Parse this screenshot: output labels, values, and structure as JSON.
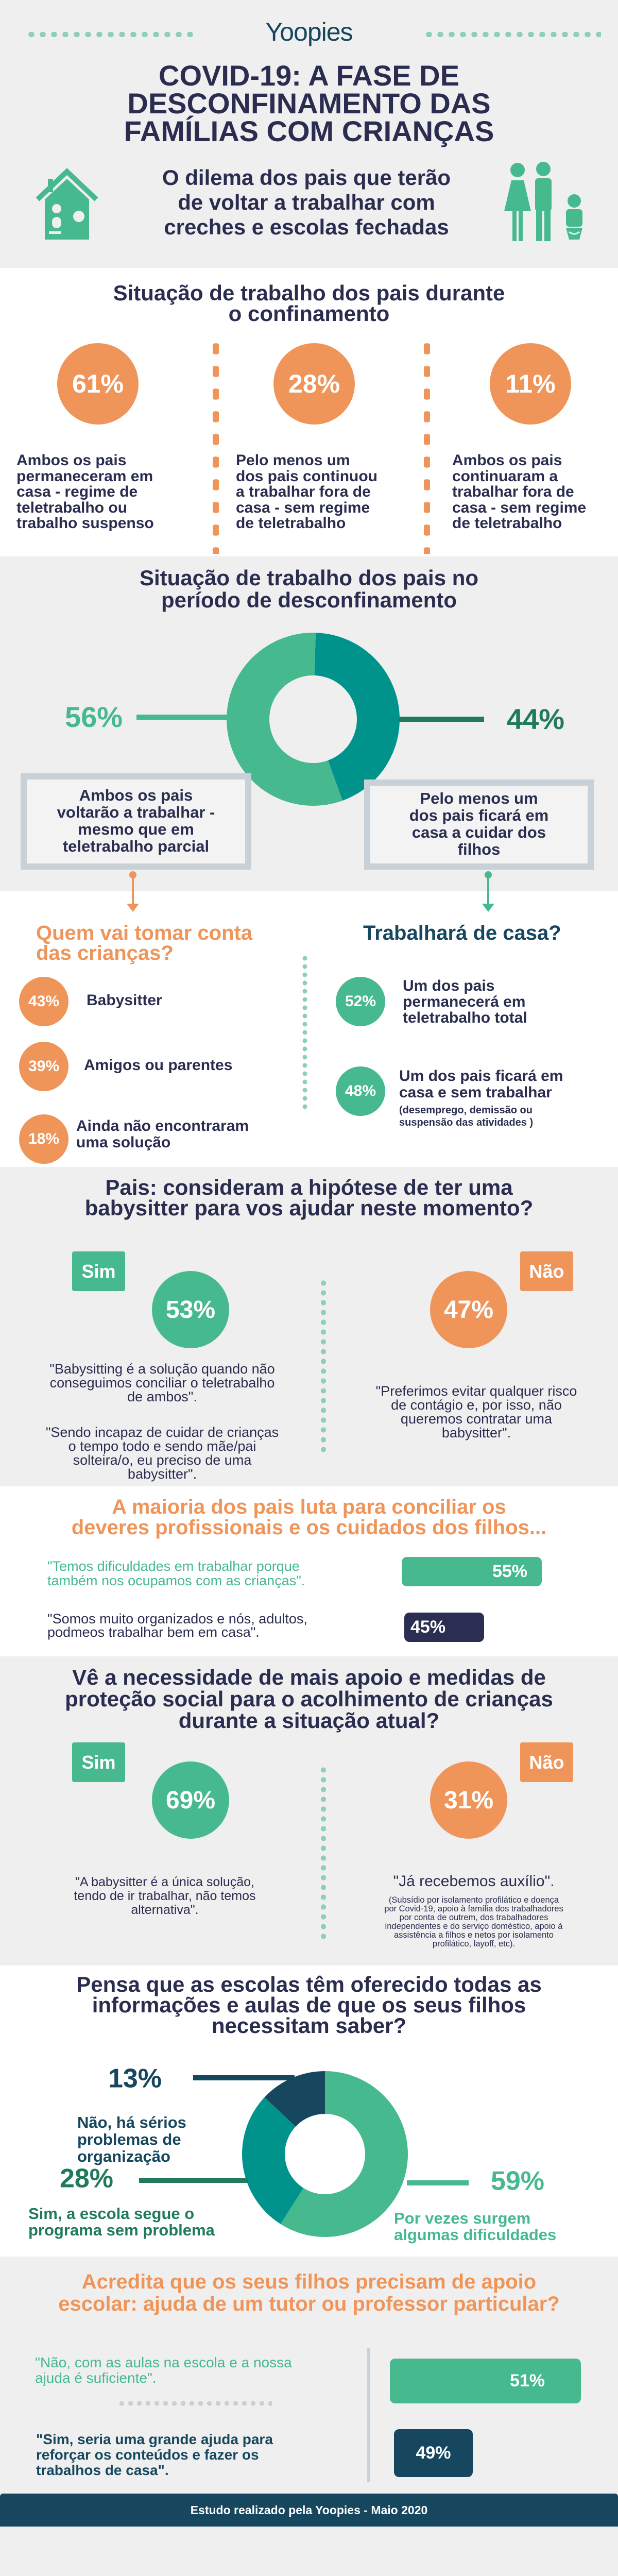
{
  "colors": {
    "navy": "#2a2d4f",
    "orange": "#f0955a",
    "green": "#46b98f",
    "teal": "#00938c",
    "darkblue": "#16475f",
    "darkgreen": "#217a5e",
    "box_border": "#c8d0d8"
  },
  "header": {
    "logo": "Yoopies",
    "title": "COVID-19: A FASE DE\nDESCONFINAMENTO DAS\nFAMÍLIAS COM CRIANÇAS",
    "subtitle": "O dilema dos pais que terão\nde voltar a trabalhar com\ncreches e escolas fechadas",
    "icons": [
      "house-icon",
      "family-icon"
    ]
  },
  "confinement": {
    "title": "Situação de trabalho dos pais durante\no confinamento",
    "items": [
      {
        "value": "61%",
        "text": "Ambos os pais\npermaneceram em\ncasa - regime de\nteletrabalho ou\ntrabalho suspenso"
      },
      {
        "value": "28%",
        "text": "Pelo menos um\ndos pais continuou\na trabalhar fora de\ncasa - sem regime\nde teletrabalho"
      },
      {
        "value": "11%",
        "text": "Ambos os pais\ncontinuaram a\ntrabalhar fora de\ncasa - sem regime\nde teletrabalho"
      }
    ]
  },
  "deconfinement": {
    "title": "Situação de trabalho dos pais no\nperíodo de desconfinamento",
    "left_box": "Ambos os pais\nvoltarão a trabalhar -\nmesmo que em\nteletrabalho parcial",
    "right_box": "Pelo menos um\ndos pais ficará em\ncasa a cuidar dos\nfilhos"
  },
  "childcare": {
    "title": "Quem vai tomar conta\ndas crianças?",
    "items": [
      {
        "value": "43%",
        "label": "Babysitter"
      },
      {
        "value": "39%",
        "label": "Amigos ou parentes"
      },
      {
        "value": "18%",
        "label": "Ainda não encontraram\numa solução"
      }
    ]
  },
  "work_home": {
    "title": "Trabalhará de casa?",
    "items": [
      {
        "value": "52%",
        "label": "Um dos pais\npermanecerá em\nteletrabalho total"
      },
      {
        "value": "48%",
        "label": "Um dos pais ficará em\ncasa e sem trabalhar",
        "note": "(desemprego, demissão ou\nsuspensão das atividades )"
      }
    ]
  },
  "babysitter_q": {
    "title": "Pais: consideram a hipótese de ter uma\nbabysitter para vos ajudar neste momento?",
    "yes_label": "Sim",
    "yes_value": "53%",
    "no_label": "Não",
    "no_value": "47%",
    "yes_quote1": "\"Babysitting é a solução quando não\nconseguimos conciliar o teletrabalho\nde ambos\".",
    "yes_quote2": "\"Sendo incapaz de cuidar de crianças\no tempo todo e sendo mãe/pai\nsolteira/o, eu preciso de uma\nbabysitter\".",
    "no_quote": "\"Preferimos evitar qualquer risco\nde contágio e, por isso, não\nqueremos contratar uma\nbabysitter\"."
  },
  "balance": {
    "title": "A maioria dos pais luta para conciliar os\ndeveres profissionais e os cuidados dos filhos...",
    "rows": [
      {
        "quote": "\"Temos dificuldades em trabalhar porque\ntambém nos ocupamos com as crianças\".",
        "value": "55%",
        "percent": 55
      },
      {
        "quote": "\"Somos muito organizados e nós, adultos,\npodmeos trabalhar bem em casa\".",
        "value": "45%",
        "percent": 45
      }
    ]
  },
  "support_q": {
    "title": "Vê a necessidade de mais apoio e medidas de\nproteção social para o acolhimento de crianças\ndurante a situação atual?",
    "yes_label": "Sim",
    "yes_value": "69%",
    "no_label": "Não",
    "no_value": "31%",
    "yes_quote": "\"A babysitter é a única solução,\ntendo de ir trabalhar, não temos\nalternativa\".",
    "no_quote": "\"Já recebemos auxílio\".",
    "no_note": "(Subsídio por isolamento profilático e doença\npor Covid-19, apoio à família dos trabalhadores\npor conta de outrem, dos trabalhadores\nindependentes e do serviço doméstico, apoio à\nassistência a filhos e netos por isolamento\nprofilático, layoff, etc)."
  },
  "schools_q": {
    "title": "Pensa que as escolas têm oferecido todas as\ninformações e aulas de que os seus filhos\nnecessitam saber?"
  },
  "tutor_q": {
    "title": "Acredita que os seus filhos precisam de apoio\nescolar: ajuda de um tutor ou professor particular?",
    "rows": [
      {
        "quote": "\"Não, com as aulas na escola e a nossa\najuda é suficiente\".",
        "value": "51%",
        "percent": 51
      },
      {
        "quote": "\"Sim, seria uma grande ajuda para\nreforçar os conteúdos e fazer os\ntrabalhos de casa\".",
        "value": "49%",
        "percent": 49
      }
    ]
  },
  "footer": {
    "text": "Estudo realizado pela Yoopies - Maio 2020"
  },
  "chart_data": [
    {
      "type": "pie",
      "donut": true,
      "categories": [
        "Ambos os pais voltarão a trabalhar - mesmo que em teletrabalho parcial",
        "Pelo menos um dos pais ficará em casa a cuidar dos filhos"
      ],
      "values": [
        56,
        44
      ],
      "labels": [
        "56%",
        "44%"
      ],
      "colors": [
        "#46b98f",
        "#00938c"
      ]
    },
    {
      "type": "pie",
      "donut": true,
      "categories": [
        "Por vezes surgem\nalgumas dificuldades",
        "Sim, a escola segue o\nprograma sem problema",
        "Não, há sérios\nproblemas de\norganização"
      ],
      "values": [
        59,
        28,
        13
      ],
      "labels": [
        "59%",
        "28%",
        "13%"
      ],
      "colors": [
        "#46b98f",
        "#00938c",
        "#16475f"
      ]
    }
  ]
}
